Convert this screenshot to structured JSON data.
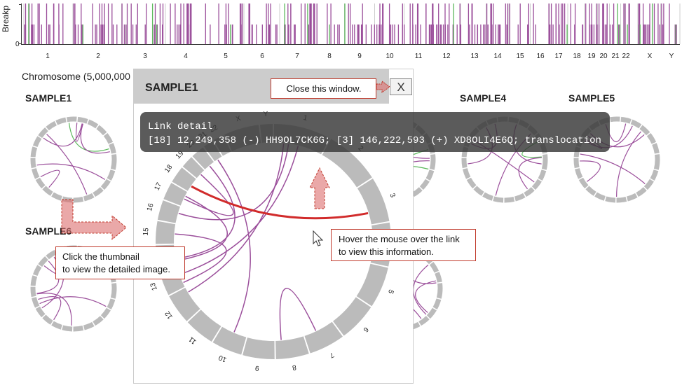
{
  "breakpoint_chart": {
    "y_axis_label": "Breakp",
    "y_tick_label": "0",
    "chromosomes": [
      "1",
      "2",
      "3",
      "4",
      "5",
      "6",
      "7",
      "8",
      "9",
      "10",
      "11",
      "12",
      "13",
      "14",
      "15",
      "16",
      "17",
      "18",
      "19",
      "20",
      "21",
      "22",
      "X",
      "Y"
    ]
  },
  "chromosome_label": "Chromosome (5,000,000",
  "thumbnails": [
    "SAMPLE1",
    "SAMPLE4",
    "SAMPLE5",
    "SAMPLE6"
  ],
  "click_hint": [
    "Click the thumbnail",
    "to view the detailed image."
  ],
  "popup": {
    "title": "SAMPLE1",
    "close": "X",
    "close_hint": "Close this window.",
    "link_detail": {
      "title": "Link detail",
      "text": "[18] 12,249,358 (-) HH9OL7CK6G; [3] 146,222,593 (+) XD8OLI4E6Q; translocation"
    },
    "hover_hint": [
      "Hover the mouse over the link",
      "to view this information."
    ]
  }
}
